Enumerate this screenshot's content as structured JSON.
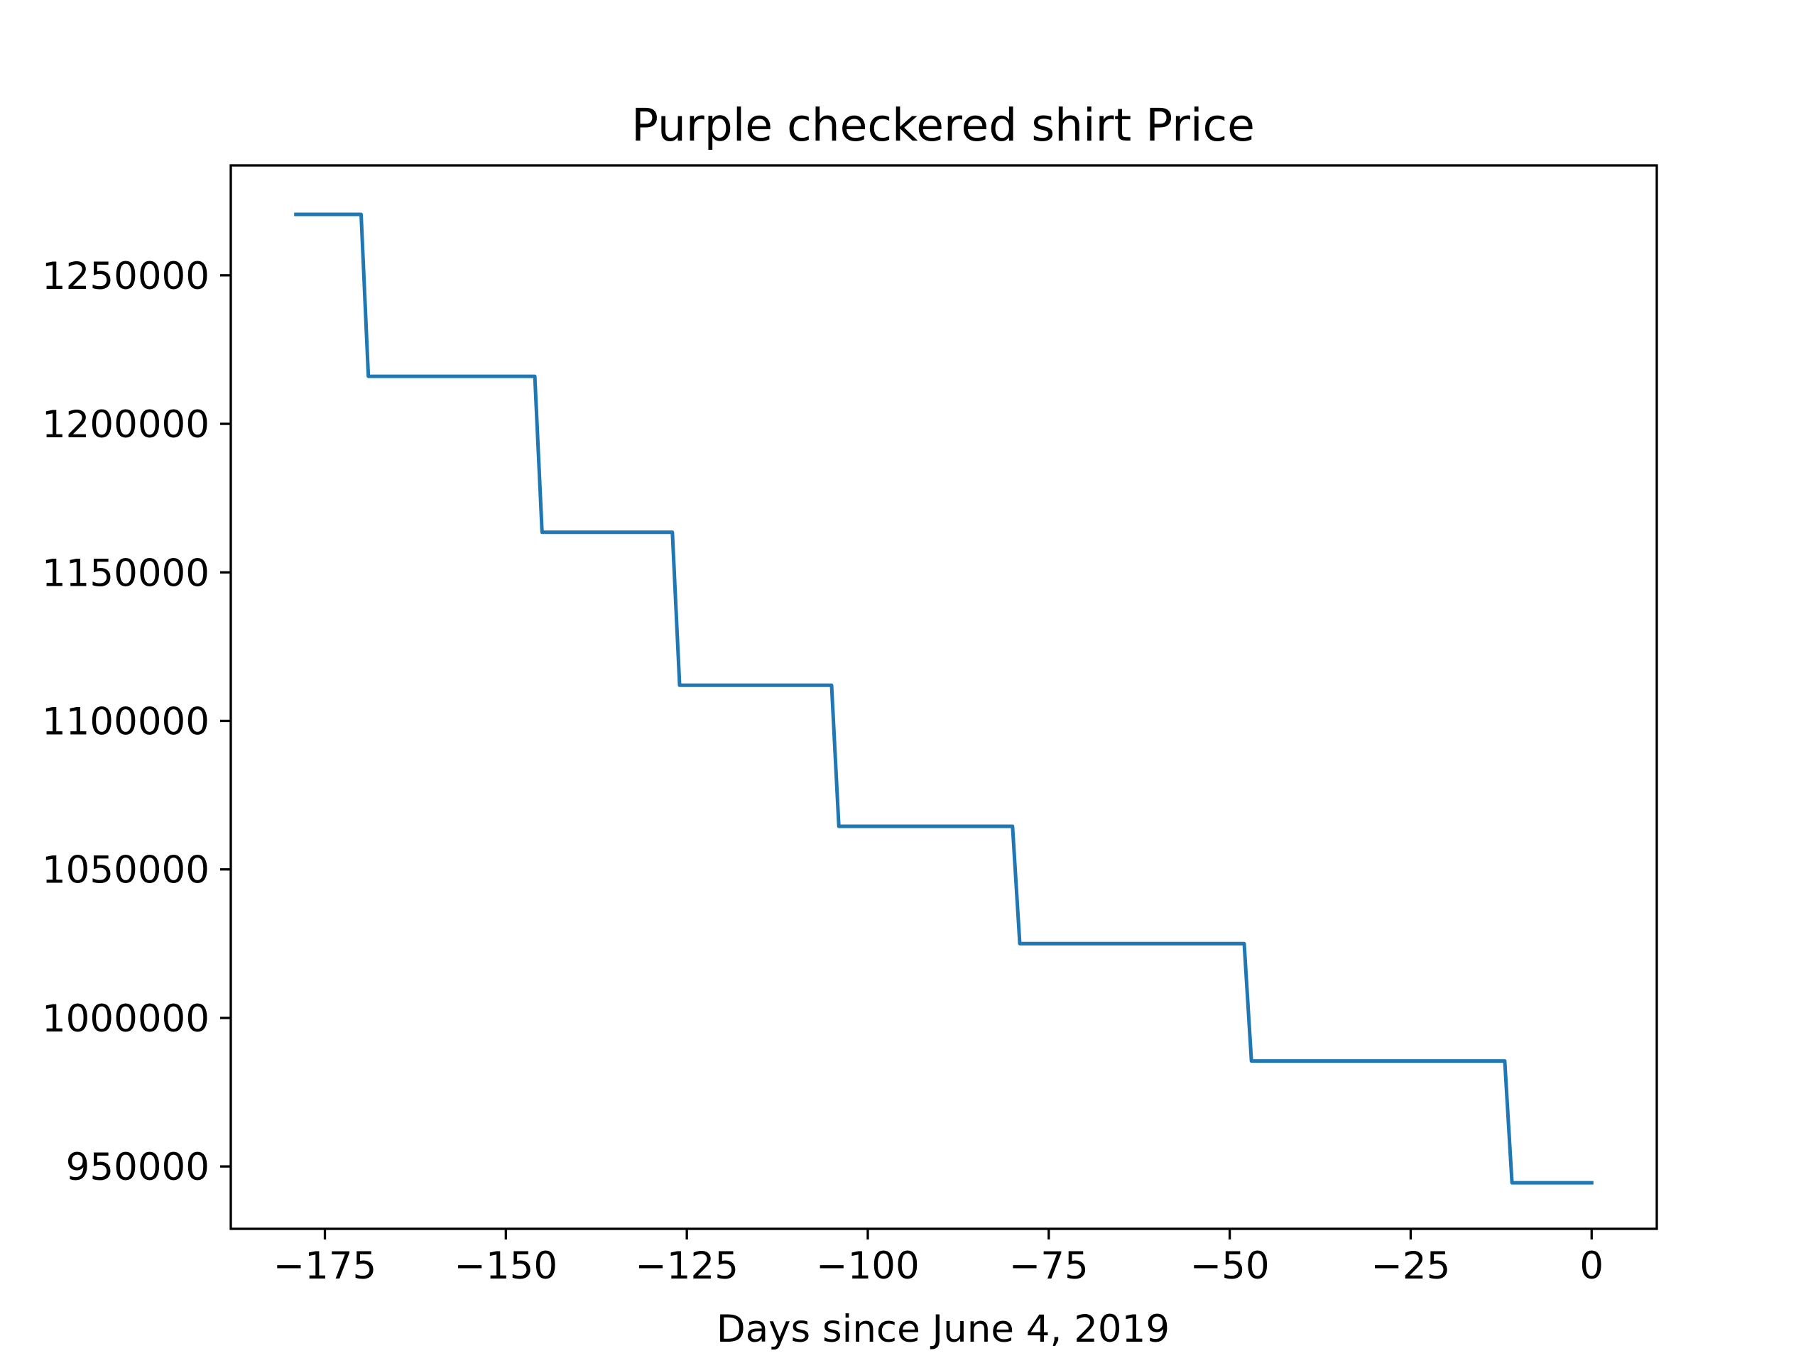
{
  "chart_data": {
    "type": "line",
    "title": "Purple checkered shirt Price",
    "xlabel": "Days since June 4, 2019",
    "ylabel": "",
    "xlim": [
      -188,
      9
    ],
    "ylim": [
      929000,
      1287000
    ],
    "xticks": [
      -175,
      -150,
      -125,
      -100,
      -75,
      -50,
      -25,
      0
    ],
    "xtick_labels": [
      "−175",
      "−150",
      "−125",
      "−100",
      "−75",
      "−50",
      "−25",
      "0"
    ],
    "yticks": [
      950000,
      1000000,
      1050000,
      1100000,
      1150000,
      1200000,
      1250000
    ],
    "ytick_labels": [
      "950000",
      "1000000",
      "1050000",
      "1100000",
      "1150000",
      "1200000",
      "1250000"
    ],
    "grid": false,
    "legend": "none",
    "series": [
      {
        "color": "#1f77b4",
        "x": [
          -179,
          -170,
          -169,
          -146,
          -145,
          -127,
          -126,
          -105,
          -104,
          -80,
          -79,
          -48,
          -47,
          -12,
          -11,
          0
        ],
        "y": [
          1270500,
          1270500,
          1216000,
          1216000,
          1163500,
          1163500,
          1112000,
          1112000,
          1064500,
          1064500,
          1025000,
          1025000,
          985500,
          985500,
          944500,
          944500
        ]
      }
    ]
  }
}
